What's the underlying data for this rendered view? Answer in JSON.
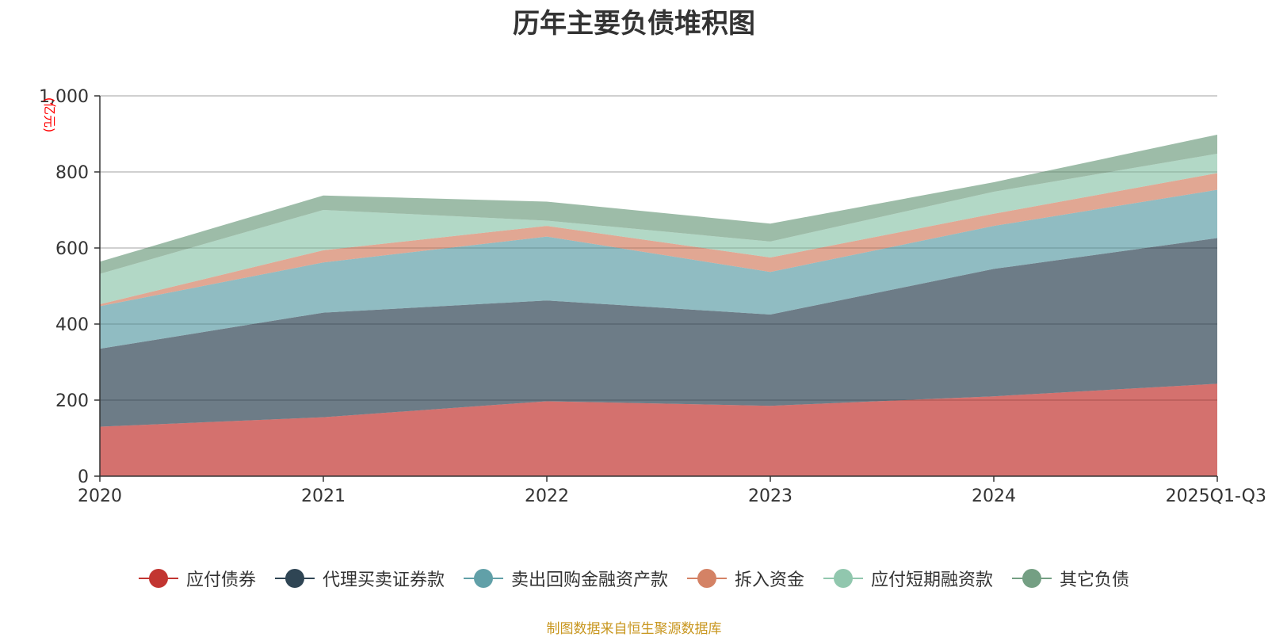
{
  "chart_data": {
    "type": "area",
    "stacked": true,
    "title": "历年主要负债堆积图",
    "ylabel": "(亿元)",
    "xlabel": "",
    "ylim": [
      0,
      1000
    ],
    "yticks": [
      0,
      200,
      400,
      600,
      800,
      1000
    ],
    "ytick_labels": [
      "0",
      "200",
      "400",
      "600",
      "800",
      "1,000"
    ],
    "categories": [
      "2020",
      "2021",
      "2022",
      "2023",
      "2024",
      "2025Q1-Q3"
    ],
    "grid": true,
    "legend_position": "bottom",
    "series": [
      {
        "name": "应付债券",
        "color": "#c23531",
        "values": [
          130,
          155,
          197,
          185,
          210,
          243
        ]
      },
      {
        "name": "代理买卖证券款",
        "color": "#2f4554",
        "values": [
          205,
          275,
          265,
          240,
          335,
          383
        ]
      },
      {
        "name": "卖出回购金融资产款",
        "color": "#61a0a8",
        "values": [
          112,
          132,
          168,
          112,
          113,
          127
        ]
      },
      {
        "name": "拆入资金",
        "color": "#d48265",
        "values": [
          5,
          32,
          28,
          38,
          32,
          44
        ]
      },
      {
        "name": "应付短期融资款",
        "color": "#91c7ae",
        "values": [
          80,
          106,
          14,
          42,
          58,
          51
        ]
      },
      {
        "name": "其它负债",
        "color": "#749f83",
        "values": [
          32,
          38,
          50,
          47,
          25,
          50
        ]
      }
    ]
  },
  "source_note": "制图数据来自恒生聚源数据库"
}
